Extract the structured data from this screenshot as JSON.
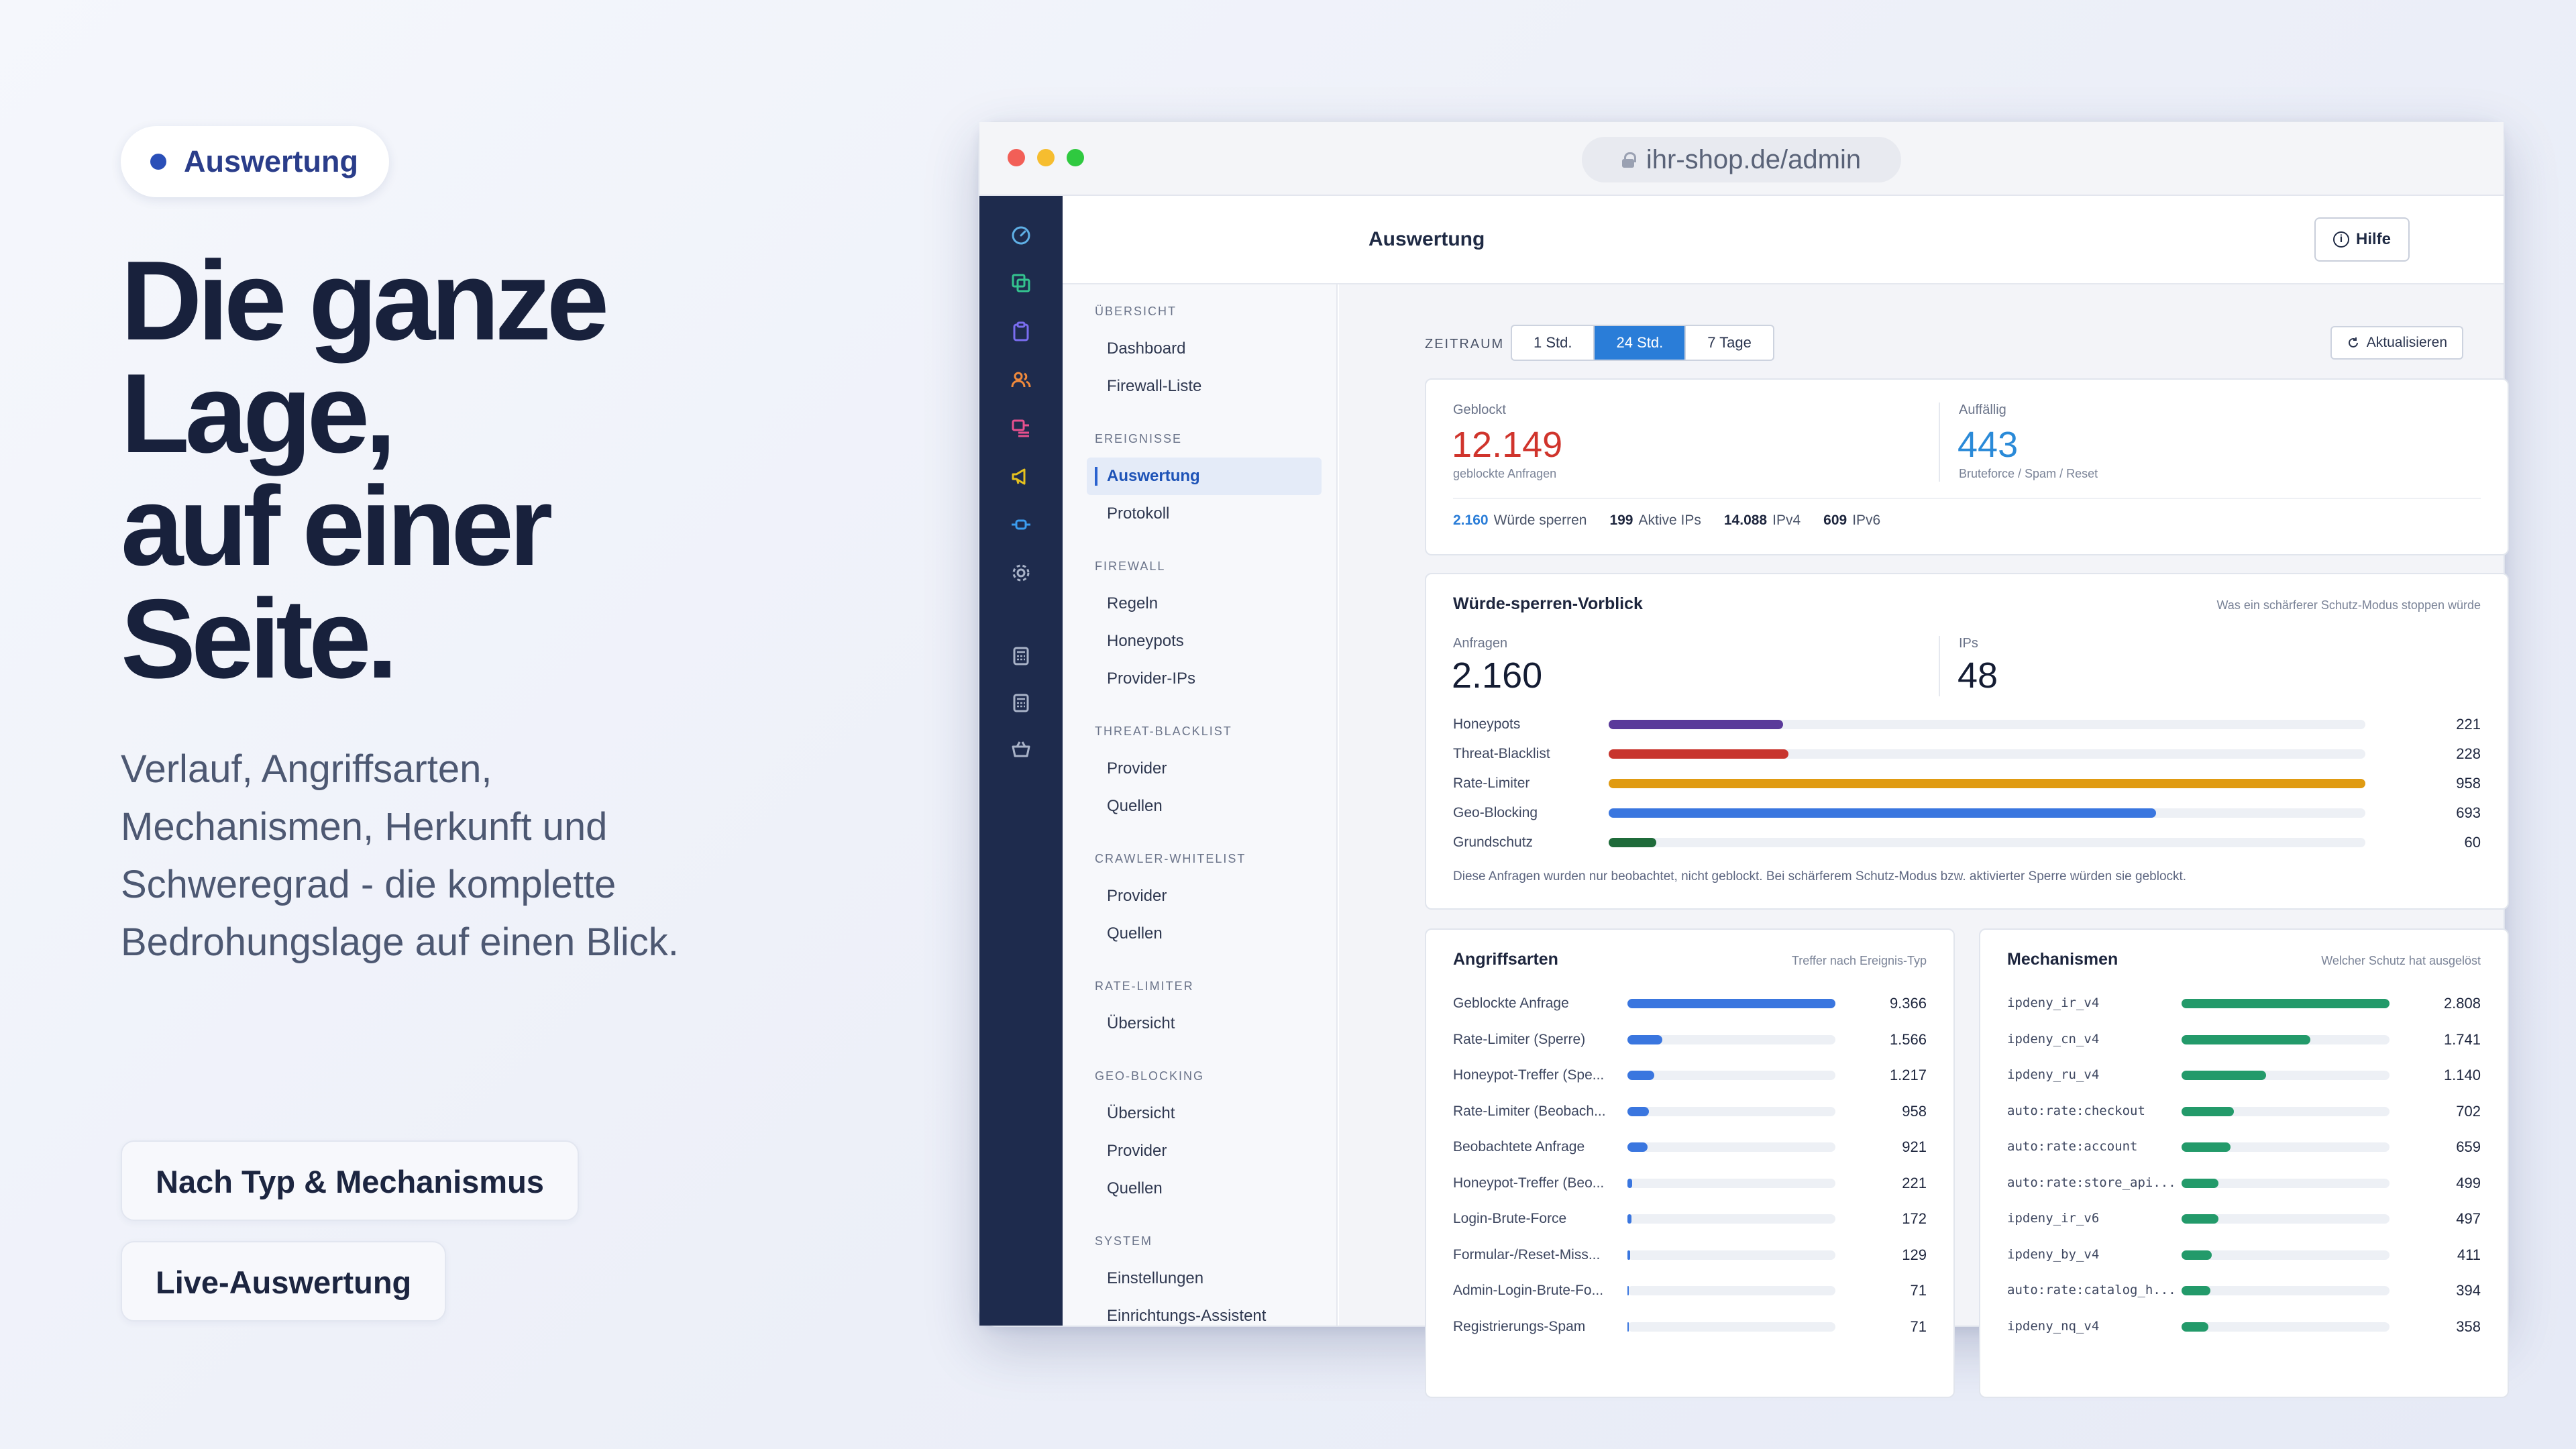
{
  "hero": {
    "badge": "Auswertung",
    "headline_lines": [
      "Die ganze",
      "Lage,",
      "auf einer",
      "Seite."
    ],
    "subtext": "Verlauf, Angriffsarten, Mechanismen, Herkunft und Schweregrad - die komplette Bedrohungslage auf einen Blick.",
    "features": [
      "Nach Typ & Mechanismus",
      "Live-Auswertung"
    ]
  },
  "browser": {
    "url": "ihr-shop.de/admin",
    "lights": [
      "#f25f57",
      "#f6bd2f",
      "#2fc940"
    ]
  },
  "rail_icons": [
    "speedometer-icon",
    "layers-icon",
    "clipboard-icon",
    "users-icon",
    "list-icon",
    "megaphone-icon",
    "plug-icon",
    "gear-icon",
    "calculator-icon",
    "calculator-icon",
    "basket-icon"
  ],
  "topbar": {
    "title": "Auswertung",
    "help_label": "Hilfe",
    "help_icon": "info-icon"
  },
  "nav": [
    {
      "section": "Übersicht",
      "items": [
        "Dashboard",
        "Firewall-Liste"
      ]
    },
    {
      "section": "Ereignisse",
      "items": [
        "Auswertung",
        "Protokoll"
      ],
      "active": 0
    },
    {
      "section": "Firewall",
      "items": [
        "Regeln",
        "Honeypots",
        "Provider-IPs"
      ]
    },
    {
      "section": "Threat-Blacklist",
      "items": [
        "Provider",
        "Quellen"
      ]
    },
    {
      "section": "Crawler-Whitelist",
      "items": [
        "Provider",
        "Quellen"
      ]
    },
    {
      "section": "Rate-Limiter",
      "items": [
        "Übersicht"
      ]
    },
    {
      "section": "Geo-Blocking",
      "items": [
        "Übersicht",
        "Provider",
        "Quellen"
      ]
    },
    {
      "section": "System",
      "items": [
        "Einstellungen",
        "Einrichtungs-Assistent"
      ]
    }
  ],
  "toolbar": {
    "zeitraum_label": "ZEITRAUM",
    "ranges": [
      "1 Std.",
      "24 Std.",
      "7 Tage"
    ],
    "selected_range": "24 Std.",
    "refresh_label": "Aktualisieren"
  },
  "summary": {
    "blocked_label": "Geblockt",
    "blocked_value": "12.149",
    "blocked_caption": "geblockte Anfragen",
    "blocked_color": "#d0342c",
    "suspicious_label": "Auffällig",
    "suspicious_value": "443",
    "suspicious_caption": "Bruteforce / Spam / Reset",
    "suspicious_color": "#2a8ad8",
    "stats": [
      {
        "value": "2.160",
        "label": "Würde sperren",
        "highlight": true
      },
      {
        "value": "199",
        "label": "Aktive IPs"
      },
      {
        "value": "14.088",
        "label": "IPv4"
      },
      {
        "value": "609",
        "label": "IPv6"
      }
    ]
  },
  "preview": {
    "title": "Würde-sperren-Vorblick",
    "hint": "Was ein schärferer Schutz-Modus stoppen würde",
    "requests_label": "Anfragen",
    "requests_value": "2.160",
    "ips_label": "IPs",
    "ips_value": "48",
    "note": "Diese Anfragen wurden nur beobachtet, nicht geblockt. Bei schärferem Schutz-Modus bzw. aktivierter Sperre würden sie geblockt.",
    "rows": [
      {
        "label": "Honeypots",
        "display": "221",
        "value": 221,
        "color": "#5a3a9a"
      },
      {
        "label": "Threat-Blacklist",
        "display": "228",
        "value": 228,
        "color": "#c8352e"
      },
      {
        "label": "Rate-Limiter",
        "display": "958",
        "value": 958,
        "color": "#e09b12"
      },
      {
        "label": "Geo-Blocking",
        "display": "693",
        "value": 693,
        "color": "#3a76df"
      },
      {
        "label": "Grundschutz",
        "display": "60",
        "value": 60,
        "color": "#1f6b3a"
      }
    ]
  },
  "attacks": {
    "title": "Angriffsarten",
    "hint": "Treffer nach Ereignis-Typ",
    "color": "#3a76df",
    "rows": [
      {
        "label": "Geblockte Anfrage",
        "display": "9.366",
        "value": 9366
      },
      {
        "label": "Rate-Limiter (Sperre)",
        "display": "1.566",
        "value": 1566
      },
      {
        "label": "Honeypot-Treffer (Spe...",
        "display": "1.217",
        "value": 1217
      },
      {
        "label": "Rate-Limiter (Beobach...",
        "display": "958",
        "value": 958
      },
      {
        "label": "Beobachtete Anfrage",
        "display": "921",
        "value": 921
      },
      {
        "label": "Honeypot-Treffer (Beo...",
        "display": "221",
        "value": 221
      },
      {
        "label": "Login-Brute-Force",
        "display": "172",
        "value": 172
      },
      {
        "label": "Formular-/Reset-Miss...",
        "display": "129",
        "value": 129
      },
      {
        "label": "Admin-Login-Brute-Fo...",
        "display": "71",
        "value": 71
      },
      {
        "label": "Registrierungs-Spam",
        "display": "71",
        "value": 71
      }
    ]
  },
  "mechanisms": {
    "title": "Mechanismen",
    "hint": "Welcher Schutz hat ausgelöst",
    "color": "#239a6a",
    "rows": [
      {
        "label": "ipdeny_ir_v4",
        "display": "2.808",
        "value": 2808
      },
      {
        "label": "ipdeny_cn_v4",
        "display": "1.741",
        "value": 1741
      },
      {
        "label": "ipdeny_ru_v4",
        "display": "1.140",
        "value": 1140
      },
      {
        "label": "auto:rate:checkout",
        "display": "702",
        "value": 702
      },
      {
        "label": "auto:rate:account",
        "display": "659",
        "value": 659
      },
      {
        "label": "auto:rate:store_api...",
        "display": "499",
        "value": 499
      },
      {
        "label": "ipdeny_ir_v6",
        "display": "497",
        "value": 497
      },
      {
        "label": "ipdeny_by_v4",
        "display": "411",
        "value": 411
      },
      {
        "label": "auto:rate:catalog_h...",
        "display": "394",
        "value": 394
      },
      {
        "label": "ipdeny_nq_v4",
        "display": "358",
        "value": 358
      }
    ]
  }
}
